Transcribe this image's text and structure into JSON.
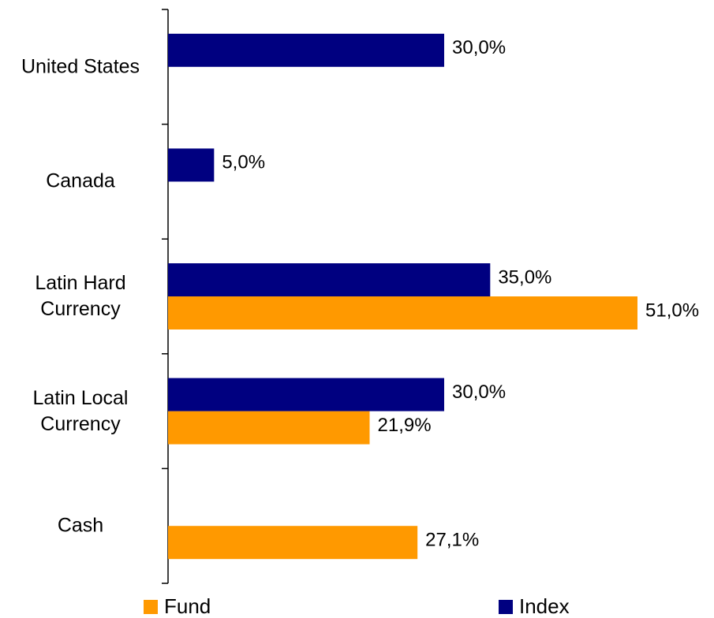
{
  "chart_data": {
    "type": "bar",
    "orientation": "horizontal",
    "categories": [
      "United States",
      "Canada",
      "Latin Hard Currency",
      "Latin Local Currency",
      "Cash"
    ],
    "series": [
      {
        "name": "Fund",
        "color": "#ff9900",
        "values": [
          null,
          null,
          51,
          21.9,
          27.1
        ],
        "value_labels": [
          null,
          null,
          "51,0%",
          "21,9%",
          "27,1%"
        ]
      },
      {
        "name": "Index",
        "color": "#000080",
        "values": [
          30,
          5,
          35,
          30,
          null
        ],
        "value_labels": [
          "30,0%",
          "5,0%",
          "35,0%",
          "30,0%",
          null
        ]
      }
    ],
    "xlim": [
      0,
      51
    ],
    "grid": false,
    "legend": "bottom"
  }
}
